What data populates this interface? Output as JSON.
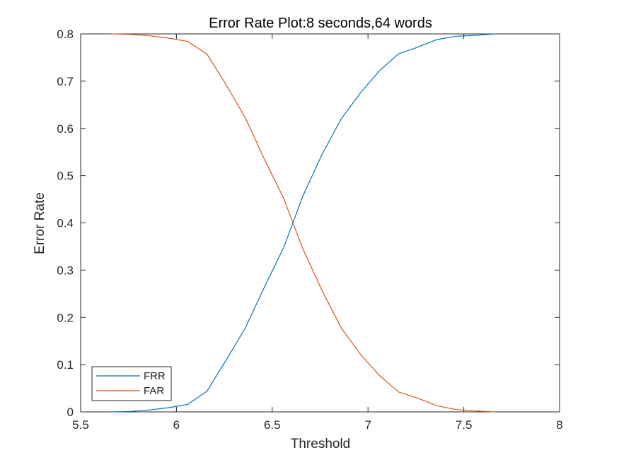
{
  "chart_data": {
    "type": "line",
    "title": "Error Rate Plot:8 seconds,64 words",
    "xlabel": "Threshold",
    "ylabel": "Error Rate",
    "xlim": [
      5.5,
      8
    ],
    "ylim": [
      0,
      0.8
    ],
    "xticks": [
      5.5,
      6,
      6.5,
      7,
      7.5,
      8
    ],
    "xtick_labels": [
      "5.5",
      "6",
      "6.5",
      "7",
      "7.5",
      "8"
    ],
    "yticks": [
      0,
      0.1,
      0.2,
      0.3,
      0.4,
      0.5,
      0.6,
      0.7,
      0.8
    ],
    "ytick_labels": [
      "0",
      "0.1",
      "0.2",
      "0.3",
      "0.4",
      "0.5",
      "0.6",
      "0.7",
      "0.8"
    ],
    "grid": false,
    "legend_position": "bottom-left",
    "series": [
      {
        "name": "FRR",
        "color": "#0072BD",
        "x": [
          5.66,
          5.76,
          5.86,
          5.96,
          6.06,
          6.16,
          6.26,
          6.36,
          6.46,
          6.56,
          6.66,
          6.76,
          6.86,
          6.96,
          7.06,
          7.16,
          7.26,
          7.36,
          7.46,
          7.56,
          7.66
        ],
        "y": [
          0.0,
          0.001,
          0.004,
          0.009,
          0.016,
          0.044,
          0.11,
          0.178,
          0.265,
          0.348,
          0.457,
          0.545,
          0.62,
          0.675,
          0.722,
          0.758,
          0.772,
          0.788,
          0.795,
          0.797,
          0.8
        ]
      },
      {
        "name": "FAR",
        "color": "#D95319",
        "x": [
          5.66,
          5.76,
          5.86,
          5.96,
          6.06,
          6.16,
          6.26,
          6.36,
          6.46,
          6.56,
          6.66,
          6.76,
          6.86,
          6.96,
          7.06,
          7.16,
          7.26,
          7.36,
          7.46,
          7.56,
          7.66
        ],
        "y": [
          0.8,
          0.799,
          0.796,
          0.791,
          0.784,
          0.757,
          0.692,
          0.622,
          0.534,
          0.452,
          0.345,
          0.257,
          0.178,
          0.122,
          0.077,
          0.042,
          0.029,
          0.013,
          0.005,
          0.002,
          0.0
        ]
      }
    ]
  }
}
